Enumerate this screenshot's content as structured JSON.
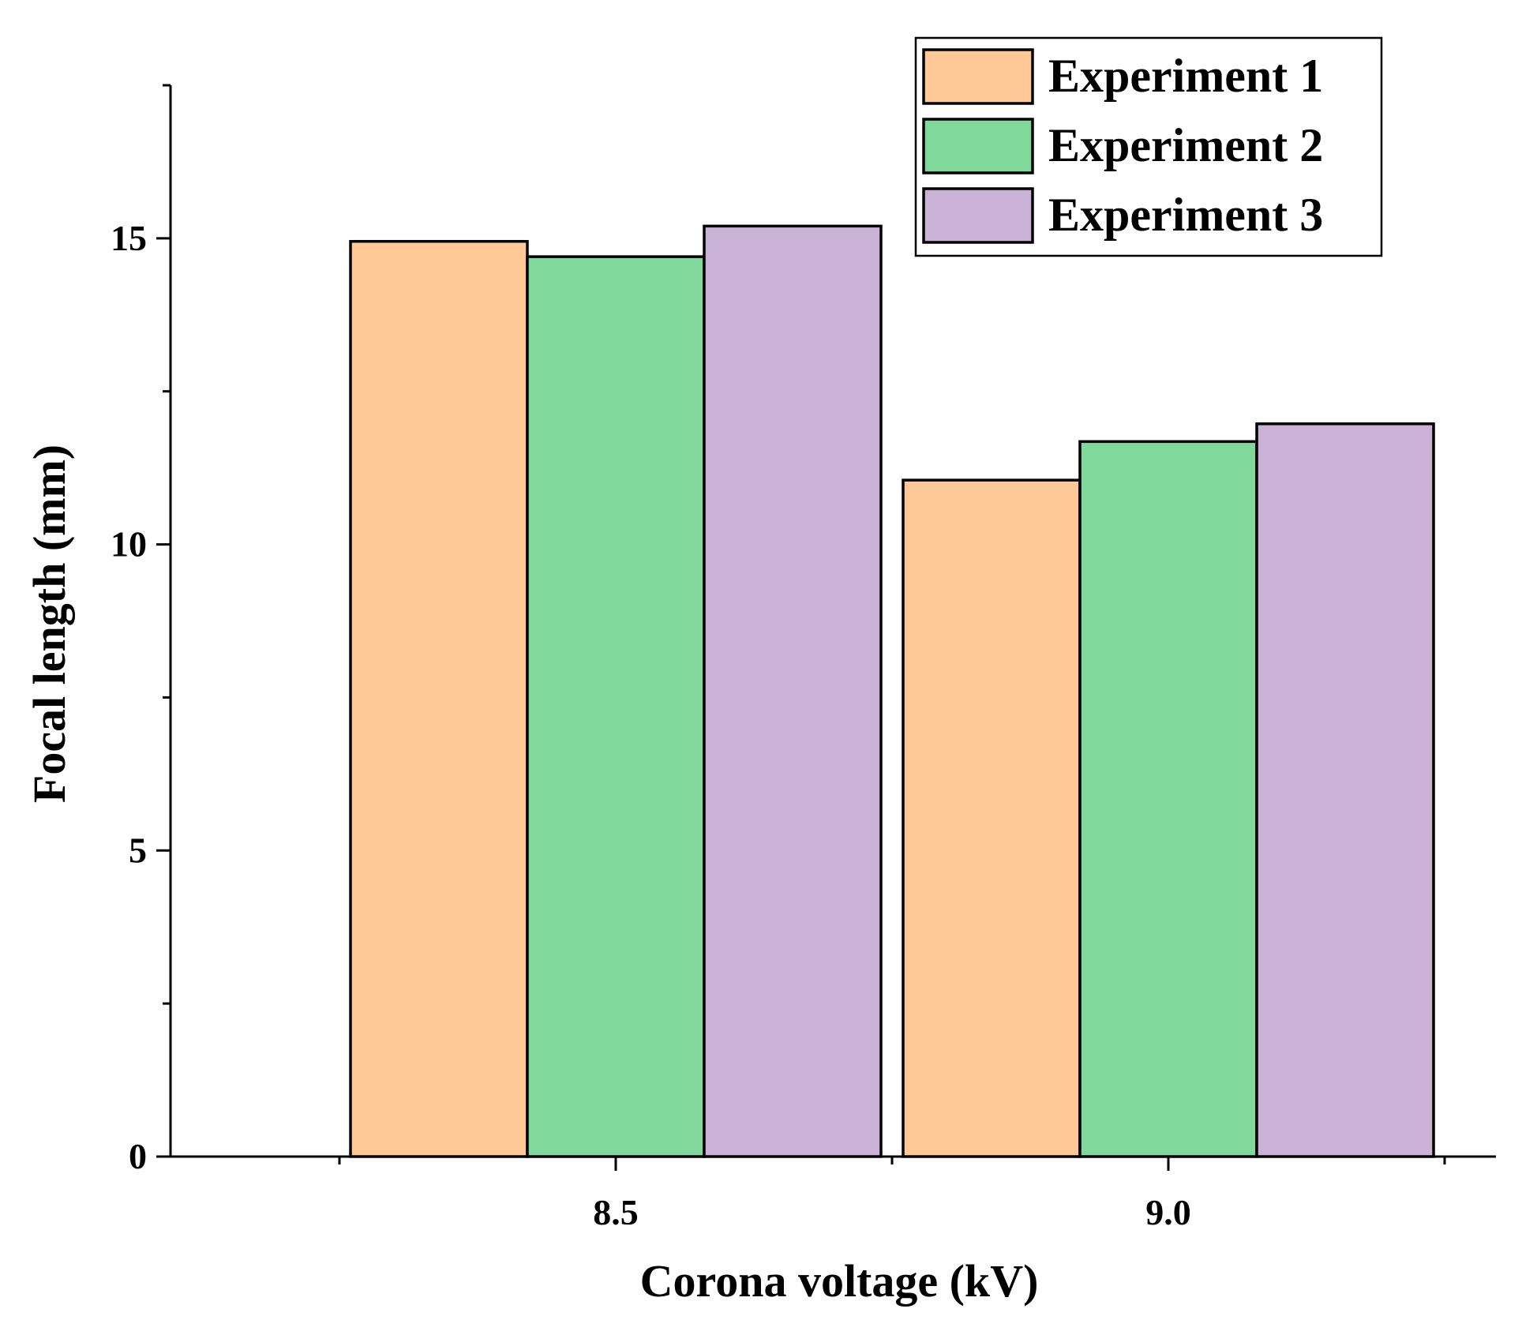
{
  "chart_data": {
    "type": "bar",
    "title": "",
    "xlabel": "Corona voltage (kV)",
    "ylabel": "Focal length (mm)",
    "categories": [
      "8.5",
      "9.0"
    ],
    "series": [
      {
        "name": "Experiment 1",
        "values": [
          14.95,
          11.05
        ],
        "color": "#FFC896"
      },
      {
        "name": "Experiment 2",
        "values": [
          14.7,
          11.68
        ],
        "color": "#80D89A"
      },
      {
        "name": "Experiment 3",
        "values": [
          15.2,
          11.97
        ],
        "color": "#C9B2D6"
      }
    ],
    "ylim": [
      0,
      17.5
    ],
    "yticks": [
      "0",
      "5",
      "10",
      "15"
    ],
    "grid": false,
    "legend_position": "top-right"
  }
}
